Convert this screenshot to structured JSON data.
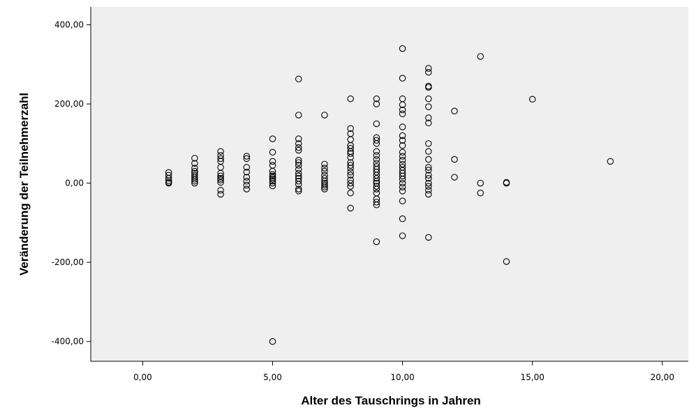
{
  "chart_data": {
    "type": "scatter",
    "title": "",
    "xlabel": "Alter des Tauschrings in Jahren",
    "ylabel": "Veränderung der Teilnehmerzahl",
    "xlim": [
      -2,
      21
    ],
    "ylim": [
      -450,
      445
    ],
    "xticks": [
      0,
      5,
      10,
      15,
      20
    ],
    "xtick_labels": [
      "0,00",
      "5,00",
      "10,00",
      "15,00",
      "20,00"
    ],
    "yticks": [
      -400,
      -200,
      0,
      200,
      400
    ],
    "ytick_labels": [
      "-400,00",
      "-200,00",
      "0,00",
      "200,00",
      "400,00"
    ],
    "grid": false,
    "legend": "none",
    "plot_background": "#efefef",
    "marker_color": "#000000",
    "points": [
      {
        "x": 1,
        "y": 27
      },
      {
        "x": 1,
        "y": 20
      },
      {
        "x": 1,
        "y": 12
      },
      {
        "x": 1,
        "y": 6
      },
      {
        "x": 1,
        "y": 2
      },
      {
        "x": 1,
        "y": 0
      },
      {
        "x": 2,
        "y": 63
      },
      {
        "x": 2,
        "y": 50
      },
      {
        "x": 2,
        "y": 38
      },
      {
        "x": 2,
        "y": 30
      },
      {
        "x": 2,
        "y": 25
      },
      {
        "x": 2,
        "y": 20
      },
      {
        "x": 2,
        "y": 15
      },
      {
        "x": 2,
        "y": 10
      },
      {
        "x": 2,
        "y": 5
      },
      {
        "x": 2,
        "y": 0
      },
      {
        "x": 3,
        "y": 80
      },
      {
        "x": 3,
        "y": 70
      },
      {
        "x": 3,
        "y": 62
      },
      {
        "x": 3,
        "y": 55
      },
      {
        "x": 3,
        "y": 40
      },
      {
        "x": 3,
        "y": 25
      },
      {
        "x": 3,
        "y": 18
      },
      {
        "x": 3,
        "y": 12
      },
      {
        "x": 3,
        "y": 8
      },
      {
        "x": 3,
        "y": 2
      },
      {
        "x": 3,
        "y": -18
      },
      {
        "x": 3,
        "y": -28
      },
      {
        "x": 4,
        "y": 68
      },
      {
        "x": 4,
        "y": 62
      },
      {
        "x": 4,
        "y": 40
      },
      {
        "x": 4,
        "y": 28
      },
      {
        "x": 4,
        "y": 15
      },
      {
        "x": 4,
        "y": 5
      },
      {
        "x": 4,
        "y": -5
      },
      {
        "x": 4,
        "y": -15
      },
      {
        "x": 5,
        "y": 112
      },
      {
        "x": 5,
        "y": 78
      },
      {
        "x": 5,
        "y": 55
      },
      {
        "x": 5,
        "y": 45
      },
      {
        "x": 5,
        "y": 30
      },
      {
        "x": 5,
        "y": 22
      },
      {
        "x": 5,
        "y": 18
      },
      {
        "x": 5,
        "y": 14
      },
      {
        "x": 5,
        "y": 10
      },
      {
        "x": 5,
        "y": 5
      },
      {
        "x": 5,
        "y": 0
      },
      {
        "x": 5,
        "y": -7
      },
      {
        "x": 5,
        "y": -400
      },
      {
        "x": 6,
        "y": 263
      },
      {
        "x": 6,
        "y": 172
      },
      {
        "x": 6,
        "y": 112
      },
      {
        "x": 6,
        "y": 100
      },
      {
        "x": 6,
        "y": 90
      },
      {
        "x": 6,
        "y": 83
      },
      {
        "x": 6,
        "y": 58
      },
      {
        "x": 6,
        "y": 52
      },
      {
        "x": 6,
        "y": 45
      },
      {
        "x": 6,
        "y": 35
      },
      {
        "x": 6,
        "y": 25
      },
      {
        "x": 6,
        "y": 18
      },
      {
        "x": 6,
        "y": 12
      },
      {
        "x": 6,
        "y": 5
      },
      {
        "x": 6,
        "y": -3
      },
      {
        "x": 6,
        "y": -15
      },
      {
        "x": 6,
        "y": -20
      },
      {
        "x": 7,
        "y": 172
      },
      {
        "x": 7,
        "y": 48
      },
      {
        "x": 7,
        "y": 38
      },
      {
        "x": 7,
        "y": 30
      },
      {
        "x": 7,
        "y": 20
      },
      {
        "x": 7,
        "y": 12
      },
      {
        "x": 7,
        "y": 5
      },
      {
        "x": 7,
        "y": 0
      },
      {
        "x": 7,
        "y": -5
      },
      {
        "x": 7,
        "y": -10
      },
      {
        "x": 7,
        "y": -15
      },
      {
        "x": 8,
        "y": 213
      },
      {
        "x": 8,
        "y": 138
      },
      {
        "x": 8,
        "y": 125
      },
      {
        "x": 8,
        "y": 110
      },
      {
        "x": 8,
        "y": 95
      },
      {
        "x": 8,
        "y": 88
      },
      {
        "x": 8,
        "y": 80
      },
      {
        "x": 8,
        "y": 75
      },
      {
        "x": 8,
        "y": 65
      },
      {
        "x": 8,
        "y": 52
      },
      {
        "x": 8,
        "y": 45
      },
      {
        "x": 8,
        "y": 38
      },
      {
        "x": 8,
        "y": 28
      },
      {
        "x": 8,
        "y": 20
      },
      {
        "x": 8,
        "y": 8
      },
      {
        "x": 8,
        "y": 0
      },
      {
        "x": 8,
        "y": -8
      },
      {
        "x": 8,
        "y": -25
      },
      {
        "x": 8,
        "y": -63
      },
      {
        "x": 9,
        "y": 213
      },
      {
        "x": 9,
        "y": 200
      },
      {
        "x": 9,
        "y": 150
      },
      {
        "x": 9,
        "y": 115
      },
      {
        "x": 9,
        "y": 108
      },
      {
        "x": 9,
        "y": 100
      },
      {
        "x": 9,
        "y": 80
      },
      {
        "x": 9,
        "y": 70
      },
      {
        "x": 9,
        "y": 60
      },
      {
        "x": 9,
        "y": 50
      },
      {
        "x": 9,
        "y": 42
      },
      {
        "x": 9,
        "y": 35
      },
      {
        "x": 9,
        "y": 28
      },
      {
        "x": 9,
        "y": 20
      },
      {
        "x": 9,
        "y": 12
      },
      {
        "x": 9,
        "y": 5
      },
      {
        "x": 9,
        "y": 0
      },
      {
        "x": 9,
        "y": -8
      },
      {
        "x": 9,
        "y": -15
      },
      {
        "x": 9,
        "y": -25
      },
      {
        "x": 9,
        "y": -40
      },
      {
        "x": 9,
        "y": -48
      },
      {
        "x": 9,
        "y": -55
      },
      {
        "x": 9,
        "y": -148
      },
      {
        "x": 10,
        "y": 340
      },
      {
        "x": 10,
        "y": 265
      },
      {
        "x": 10,
        "y": 213
      },
      {
        "x": 10,
        "y": 198
      },
      {
        "x": 10,
        "y": 185
      },
      {
        "x": 10,
        "y": 175
      },
      {
        "x": 10,
        "y": 142
      },
      {
        "x": 10,
        "y": 120
      },
      {
        "x": 10,
        "y": 108
      },
      {
        "x": 10,
        "y": 95
      },
      {
        "x": 10,
        "y": 78
      },
      {
        "x": 10,
        "y": 68
      },
      {
        "x": 10,
        "y": 58
      },
      {
        "x": 10,
        "y": 48
      },
      {
        "x": 10,
        "y": 40
      },
      {
        "x": 10,
        "y": 32
      },
      {
        "x": 10,
        "y": 25
      },
      {
        "x": 10,
        "y": 18
      },
      {
        "x": 10,
        "y": 10
      },
      {
        "x": 10,
        "y": 0
      },
      {
        "x": 10,
        "y": -10
      },
      {
        "x": 10,
        "y": -20
      },
      {
        "x": 10,
        "y": -45
      },
      {
        "x": 10,
        "y": -90
      },
      {
        "x": 10,
        "y": -133
      },
      {
        "x": 11,
        "y": 290
      },
      {
        "x": 11,
        "y": 280
      },
      {
        "x": 11,
        "y": 245
      },
      {
        "x": 11,
        "y": 242
      },
      {
        "x": 11,
        "y": 213
      },
      {
        "x": 11,
        "y": 193
      },
      {
        "x": 11,
        "y": 165
      },
      {
        "x": 11,
        "y": 152
      },
      {
        "x": 11,
        "y": 100
      },
      {
        "x": 11,
        "y": 80
      },
      {
        "x": 11,
        "y": 60
      },
      {
        "x": 11,
        "y": 40
      },
      {
        "x": 11,
        "y": 33
      },
      {
        "x": 11,
        "y": 20
      },
      {
        "x": 11,
        "y": 12
      },
      {
        "x": 11,
        "y": 0
      },
      {
        "x": 11,
        "y": -8
      },
      {
        "x": 11,
        "y": -18
      },
      {
        "x": 11,
        "y": -28
      },
      {
        "x": 11,
        "y": -137
      },
      {
        "x": 12,
        "y": 182
      },
      {
        "x": 12,
        "y": 60
      },
      {
        "x": 12,
        "y": 15
      },
      {
        "x": 13,
        "y": 320
      },
      {
        "x": 13,
        "y": 0
      },
      {
        "x": 13,
        "y": -25
      },
      {
        "x": 14,
        "y": 2
      },
      {
        "x": 14,
        "y": 0
      },
      {
        "x": 14,
        "y": -198
      },
      {
        "x": 15,
        "y": 212
      },
      {
        "x": 18,
        "y": 55
      }
    ]
  }
}
